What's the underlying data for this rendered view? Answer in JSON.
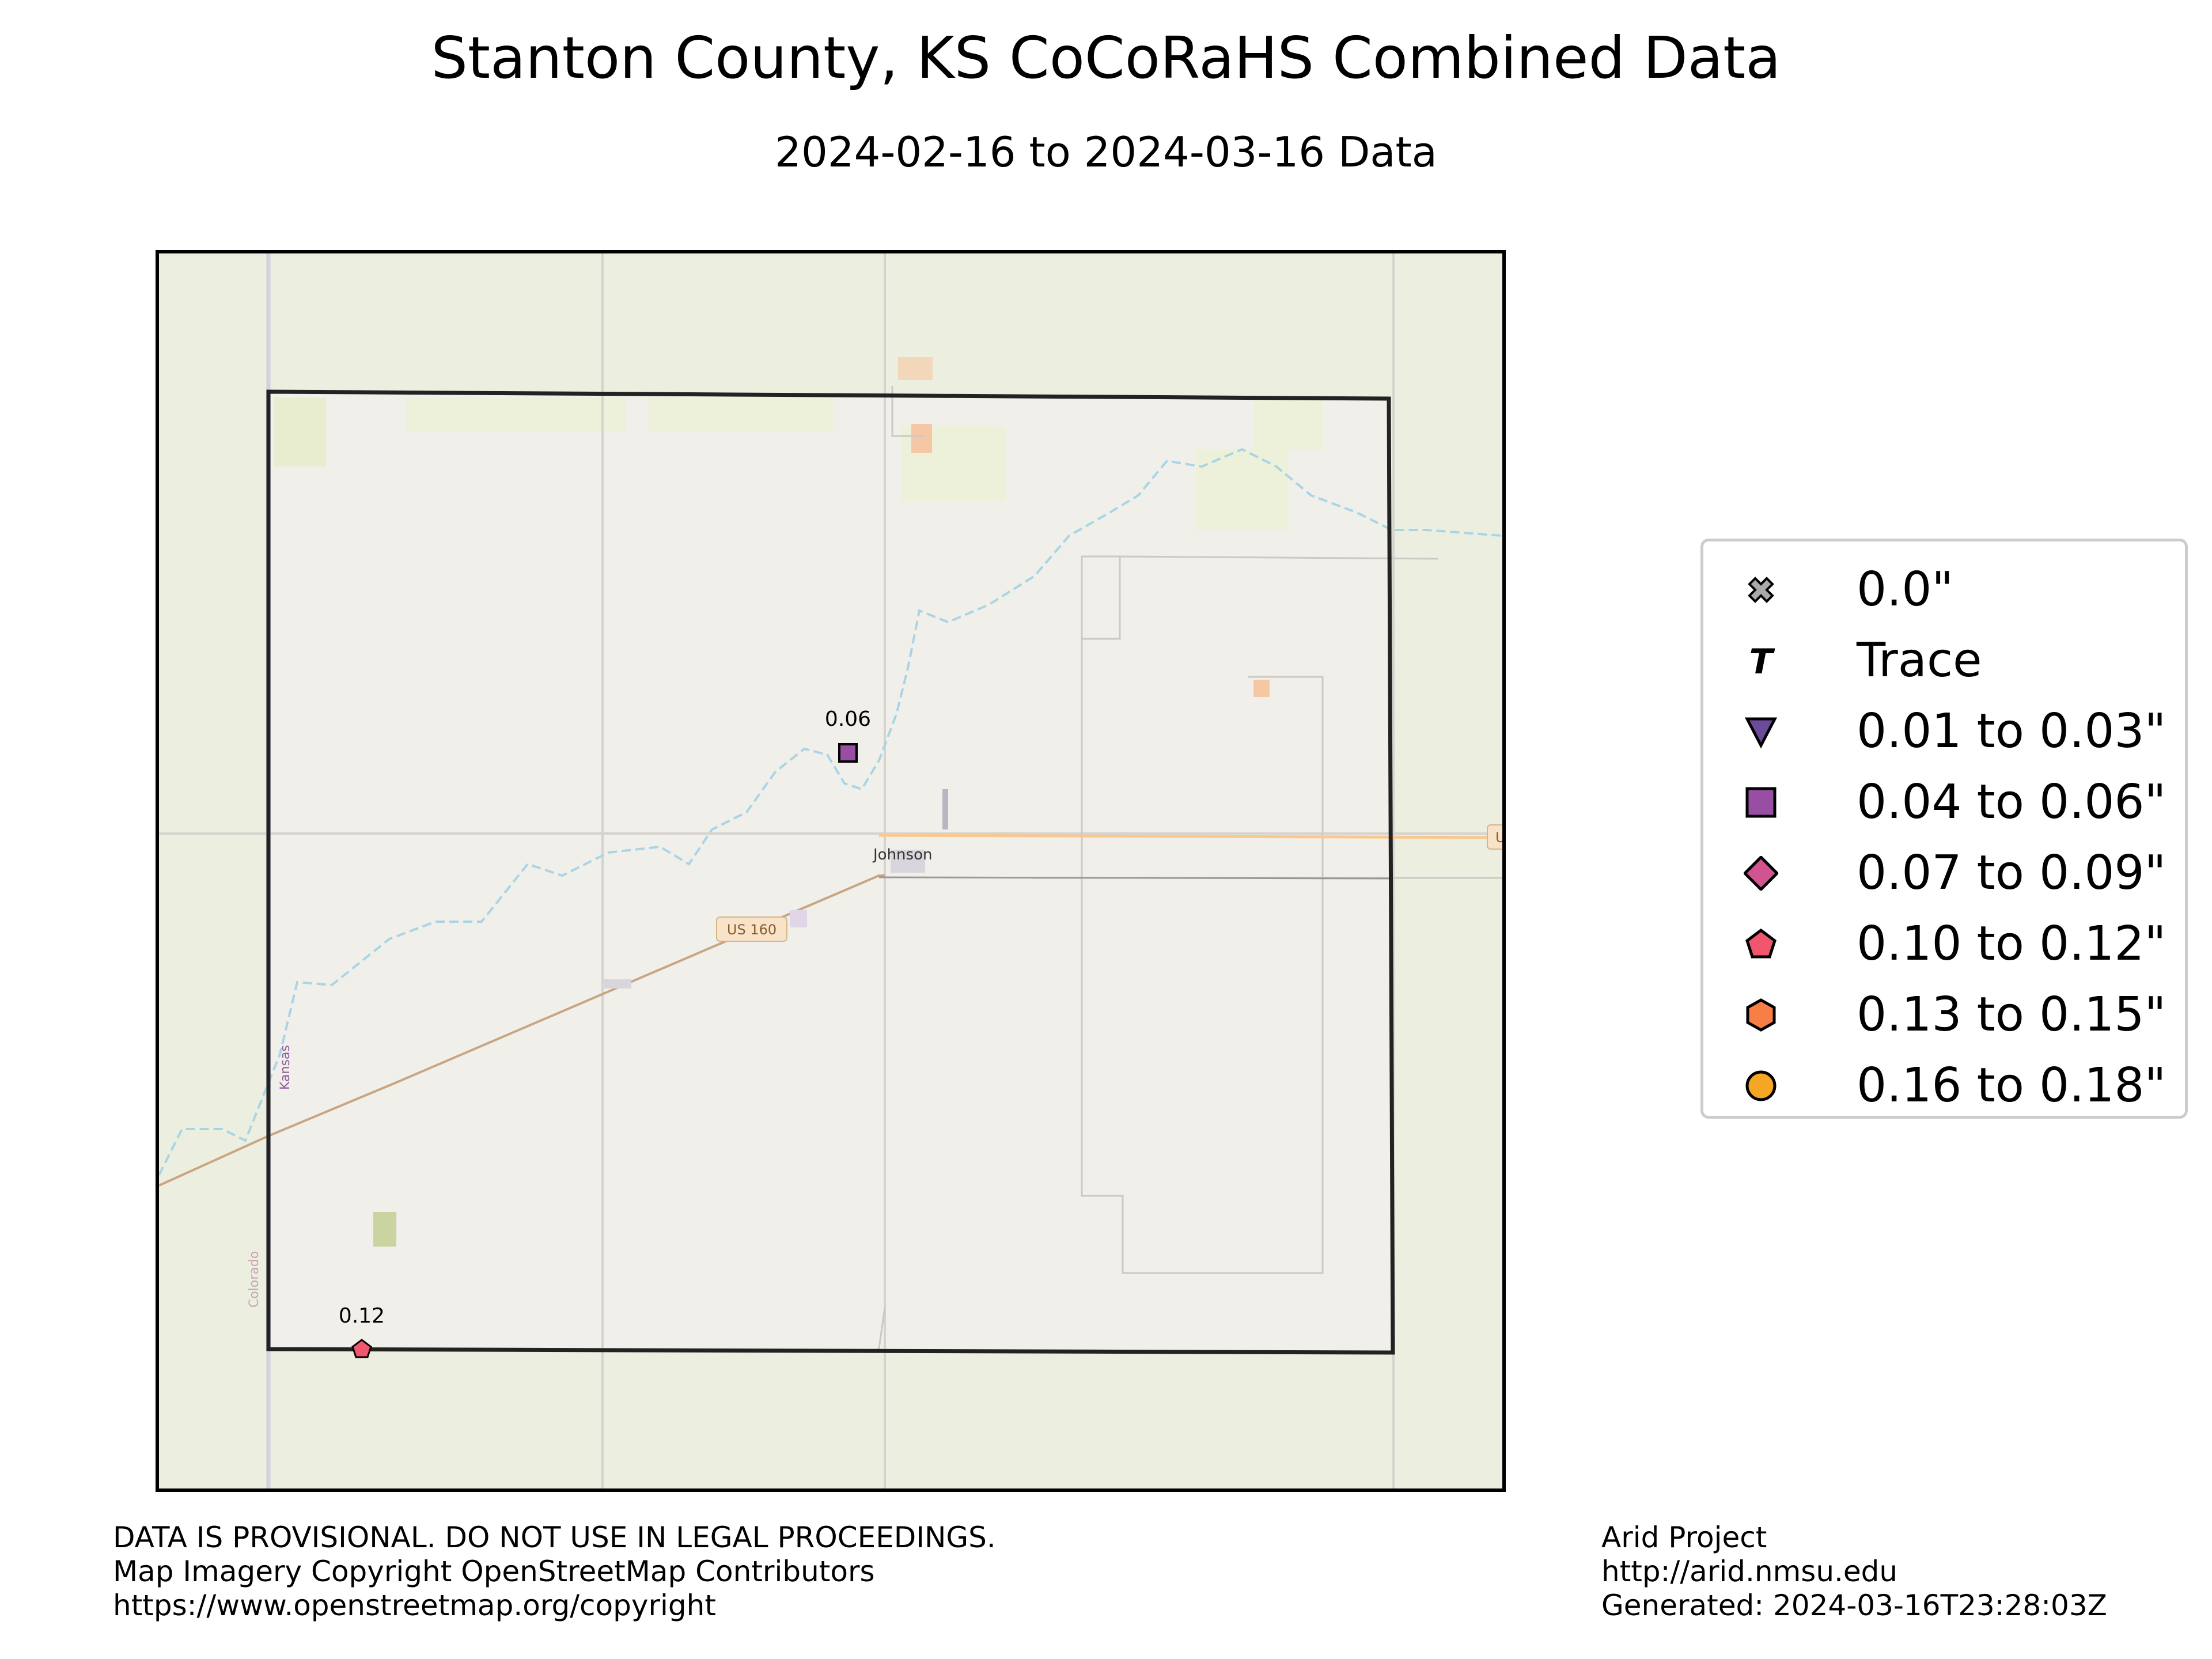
{
  "title": "Stanton County, KS CoCoRaHS Combined Data",
  "subtitle": "2024-02-16 to 2024-03-16 Data",
  "map": {
    "labels": {
      "town": "Johnson",
      "highway_shield": "US 160",
      "highway_shield_east": "U",
      "state_kansas": "Kansas",
      "state_colorado": "Colorado"
    },
    "observations": [
      {
        "value_label": "0.06",
        "category": "0.04 to 0.06\""
      },
      {
        "value_label": "0.12",
        "category": "0.10 to 0.12\""
      }
    ]
  },
  "legend": {
    "items": [
      {
        "label": "0.0\"",
        "icon": "cross-x-icon",
        "color": "#aaaaaa"
      },
      {
        "label": "Trace",
        "icon": "trace-t-icon",
        "color": "#000000"
      },
      {
        "label": "0.01 to 0.03\"",
        "icon": "triangle-down-icon",
        "color": "#6b4c9a"
      },
      {
        "label": "0.04 to 0.06\"",
        "icon": "square-icon",
        "color": "#984ea3"
      },
      {
        "label": "0.07 to 0.09\"",
        "icon": "diamond-icon",
        "color": "#d1538f"
      },
      {
        "label": "0.10 to 0.12\"",
        "icon": "pentagon-icon",
        "color": "#f0566e"
      },
      {
        "label": "0.13 to 0.15\"",
        "icon": "hexagon-icon",
        "color": "#f77e45"
      },
      {
        "label": "0.16 to 0.18\"",
        "icon": "circle-icon",
        "color": "#f5a623"
      }
    ]
  },
  "footer": {
    "left": [
      "DATA IS PROVISIONAL. DO NOT USE IN LEGAL PROCEEDINGS.",
      "Map Imagery Copyright OpenStreetMap Contributors",
      "https://www.openstreetmap.org/copyright"
    ],
    "right": [
      "Arid Project",
      "http://arid.nmsu.edu",
      "Generated: 2024-03-16T23:28:03Z"
    ]
  }
}
